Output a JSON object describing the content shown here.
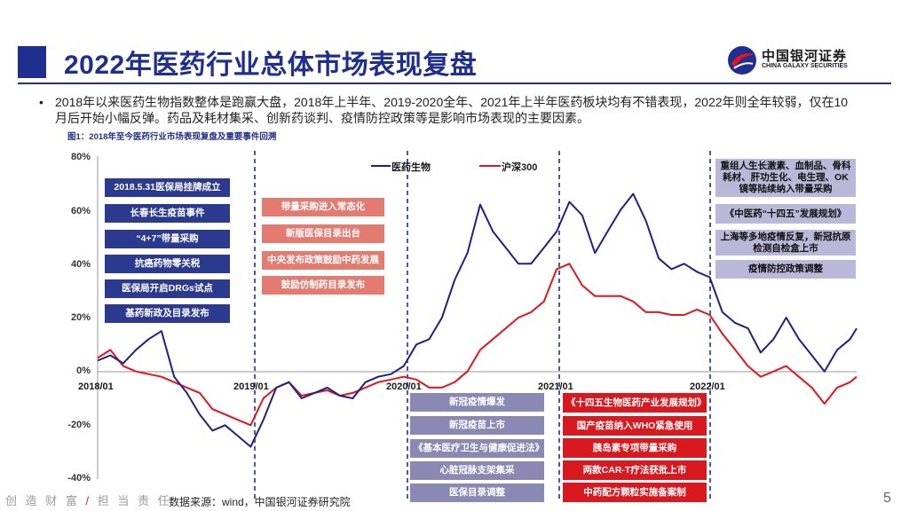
{
  "header": {
    "title": "2022年医药行业总体市场表现复盘",
    "logo_cn": "中国银河证券",
    "logo_en": "CHINA GALAXY SECURITIES"
  },
  "bullet": "2018年以来医药生物指数整体是跑赢大盘，2018年上半年、2019-2020全年、2021年上半年医药板块均有不错表现，2022年则全年较弱，仅在10月后开始小幅反弹。药品及耗材集采、创新药谈判、疫情防控政策等是影响市场表现的主要因素。",
  "figure_title": "图1：2018年至今医药行业市场表现复盘及重要事件回溯",
  "footer": {
    "slogan_a": "创 造 财 富",
    "slogan_slash": "/",
    "slogan_b": "担 当 责 任",
    "source": "数据来源：wind，中国银河证券研究院",
    "page": "5"
  },
  "colors": {
    "brand_blue": "#1f2f8f",
    "series_pharma": "#1c2386",
    "series_csi300": "#e8141c",
    "box_blue": "#2b3a8f",
    "box_red": "#e37b71",
    "box_darkred": "#d8191f",
    "box_grey": "#8a89b4",
    "box_lavender": "#bab8d8"
  },
  "chart_data": {
    "type": "line",
    "ylim": [
      -40,
      80
    ],
    "yticks": [
      "80%",
      "60%",
      "40%",
      "20%",
      "0%",
      "-20%",
      "-40%"
    ],
    "xticks": [
      "2018/01",
      "2019/01",
      "2020/01",
      "2021/01",
      "2022/01"
    ],
    "x": [
      2018.0,
      2018.083,
      2018.167,
      2018.25,
      2018.333,
      2018.417,
      2018.5,
      2018.583,
      2018.667,
      2018.75,
      2018.833,
      2018.917,
      2019.0,
      2019.083,
      2019.167,
      2019.25,
      2019.333,
      2019.417,
      2019.5,
      2019.583,
      2019.667,
      2019.75,
      2019.833,
      2019.917,
      2020.0,
      2020.083,
      2020.167,
      2020.25,
      2020.333,
      2020.417,
      2020.5,
      2020.583,
      2020.667,
      2020.75,
      2020.833,
      2020.917,
      2021.0,
      2021.083,
      2021.167,
      2021.25,
      2021.333,
      2021.417,
      2021.5,
      2021.583,
      2021.667,
      2021.75,
      2021.833,
      2021.917,
      2022.0,
      2022.083,
      2022.167,
      2022.25,
      2022.333,
      2022.417,
      2022.5,
      2022.583,
      2022.667,
      2022.75,
      2022.833,
      2022.917,
      2022.96
    ],
    "series": [
      {
        "name": "医药生物",
        "values": [
          4,
          6,
          3,
          8,
          12,
          15,
          -2,
          -8,
          -16,
          -22,
          -20,
          -24,
          -28,
          -18,
          -6,
          -4,
          -10,
          -8,
          -6,
          -9,
          -10,
          -4,
          -2,
          -1,
          2,
          10,
          12,
          20,
          34,
          44,
          62,
          52,
          46,
          40,
          40,
          46,
          52,
          63,
          58,
          44,
          52,
          60,
          66,
          56,
          42,
          38,
          40,
          37,
          35,
          22,
          18,
          16,
          7,
          12,
          20,
          12,
          6,
          0,
          8,
          12,
          16
        ]
      },
      {
        "name": "沪深300",
        "values": [
          5,
          8,
          2,
          0,
          -1,
          -2,
          -4,
          -6,
          -8,
          -14,
          -16,
          -18,
          -20,
          -10,
          -6,
          -4,
          -9,
          -8,
          -7,
          -9,
          -8,
          -6,
          -4,
          -3,
          -2,
          -3,
          -6,
          -6,
          -4,
          0,
          8,
          12,
          16,
          20,
          22,
          26,
          38,
          40,
          32,
          28,
          28,
          28,
          26,
          22,
          22,
          21,
          21,
          23,
          21,
          14,
          8,
          2,
          -2,
          0,
          2,
          -2,
          -6,
          -12,
          -6,
          -4,
          -2
        ]
      }
    ],
    "legend": [
      "医药生物",
      "沪深300"
    ],
    "legend_position": "top-center",
    "grid": false
  },
  "events": {
    "y2018": [
      "2018.5.31医保局挂牌成立",
      "长春长生疫苗事件",
      "“4+7”带量采购",
      "抗癌药物零关税",
      "医保局开启DRGs试点",
      "基药新政及目录发布"
    ],
    "y2019": [
      "带量采购进入常态化",
      "新版医保目录出台",
      "中央发布政策鼓励中药发展",
      "鼓励仿制药目录发布"
    ],
    "y2020": [
      "新冠疫情爆发",
      "新冠疫苗上市",
      "《基本医疗卫生与健康促进法》",
      "心脏冠脉支架集采",
      "医保目录调整"
    ],
    "y2021": [
      "《十四五生物医药产业发展规划》",
      "国产疫苗纳入WHO紧急使用",
      "胰岛素专项带量采购",
      "两款CAR-T疗法获批上市",
      "中药配方颗粒实施备案制"
    ],
    "y2022": [
      "重组人生长激素、血制品、骨科耗材、肝功生化、电生理、OK镜等陆续纳入带量采购",
      "《中医药“十四五”发展规划》",
      "上海等多地疫情反复，新冠抗原检测自检盒上市",
      "疫情防控政策调整"
    ]
  }
}
